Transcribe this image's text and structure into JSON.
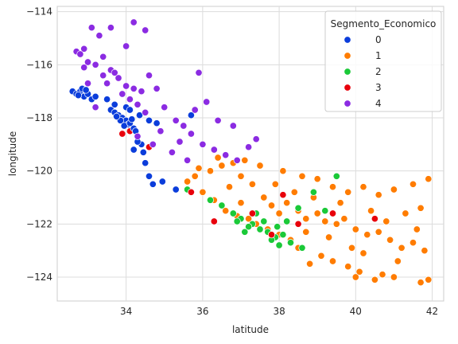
{
  "chart_data": {
    "type": "scatter",
    "xlabel": "latitude",
    "ylabel": "longitude",
    "xlim": [
      32.2,
      42.3
    ],
    "ylim": [
      -124.9,
      -113.8
    ],
    "x_ticks": [
      34,
      36,
      38,
      40,
      42
    ],
    "y_ticks": [
      -124,
      -122,
      -120,
      -118,
      -116,
      -114
    ],
    "grid": true,
    "legend": {
      "title": "Segmento_Economico",
      "position": "top-right"
    },
    "series": [
      {
        "name": "0",
        "color": "#0b3ddb",
        "points": [
          [
            32.6,
            -117.0
          ],
          [
            32.7,
            -117.1
          ],
          [
            32.8,
            -117.0
          ],
          [
            32.9,
            -117.2
          ],
          [
            33.0,
            -117.1
          ],
          [
            32.75,
            -117.15
          ],
          [
            32.85,
            -116.9
          ],
          [
            33.1,
            -117.3
          ],
          [
            33.2,
            -117.2
          ],
          [
            32.95,
            -116.95
          ],
          [
            33.6,
            -117.7
          ],
          [
            33.7,
            -117.8
          ],
          [
            33.8,
            -117.9
          ],
          [
            33.9,
            -118.0
          ],
          [
            34.0,
            -118.1
          ],
          [
            34.05,
            -118.25
          ],
          [
            33.95,
            -118.3
          ],
          [
            34.1,
            -118.2
          ],
          [
            33.85,
            -118.1
          ],
          [
            34.2,
            -118.4
          ],
          [
            34.0,
            -117.6
          ],
          [
            33.7,
            -117.5
          ],
          [
            34.15,
            -118.05
          ],
          [
            33.75,
            -117.95
          ],
          [
            34.25,
            -118.5
          ],
          [
            34.4,
            -119.0
          ],
          [
            34.3,
            -118.9
          ],
          [
            34.5,
            -119.7
          ],
          [
            34.6,
            -120.2
          ],
          [
            34.7,
            -120.5
          ],
          [
            34.95,
            -120.4
          ],
          [
            35.3,
            -120.7
          ],
          [
            34.2,
            -119.2
          ],
          [
            34.45,
            -119.3
          ],
          [
            35.7,
            -117.9
          ],
          [
            34.8,
            -118.2
          ],
          [
            34.35,
            -117.9
          ],
          [
            33.5,
            -117.3
          ],
          [
            34.1,
            -117.7
          ],
          [
            34.6,
            -118.1
          ]
        ]
      },
      {
        "name": "1",
        "color": "#ff7c00",
        "points": [
          [
            36.2,
            -120.0
          ],
          [
            36.5,
            -119.8
          ],
          [
            36.8,
            -119.7
          ],
          [
            37.0,
            -120.2
          ],
          [
            37.3,
            -120.5
          ],
          [
            37.6,
            -121.0
          ],
          [
            37.8,
            -121.3
          ],
          [
            38.0,
            -121.6
          ],
          [
            38.2,
            -121.2
          ],
          [
            38.5,
            -121.5
          ],
          [
            38.7,
            -121.8
          ],
          [
            39.0,
            -121.6
          ],
          [
            39.2,
            -121.9
          ],
          [
            39.5,
            -122.0
          ],
          [
            39.7,
            -121.8
          ],
          [
            40.0,
            -122.2
          ],
          [
            40.3,
            -122.4
          ],
          [
            40.6,
            -122.3
          ],
          [
            40.9,
            -122.6
          ],
          [
            41.2,
            -122.9
          ],
          [
            41.5,
            -122.7
          ],
          [
            41.8,
            -123.0
          ],
          [
            41.9,
            -124.1
          ],
          [
            41.7,
            -124.2
          ],
          [
            41.0,
            -124.0
          ],
          [
            40.7,
            -123.9
          ],
          [
            40.5,
            -124.1
          ],
          [
            40.1,
            -123.8
          ],
          [
            39.8,
            -123.6
          ],
          [
            39.4,
            -123.4
          ],
          [
            39.1,
            -123.2
          ],
          [
            38.8,
            -123.5
          ],
          [
            38.5,
            -122.9
          ],
          [
            38.3,
            -122.6
          ],
          [
            38.0,
            -122.4
          ],
          [
            37.7,
            -122.2
          ],
          [
            37.4,
            -122.0
          ],
          [
            37.2,
            -121.8
          ],
          [
            36.9,
            -121.7
          ],
          [
            36.6,
            -121.5
          ],
          [
            36.3,
            -121.1
          ],
          [
            36.0,
            -120.8
          ],
          [
            35.6,
            -120.4
          ],
          [
            35.9,
            -119.9
          ],
          [
            36.4,
            -119.5
          ],
          [
            37.1,
            -119.6
          ],
          [
            37.5,
            -119.8
          ],
          [
            38.1,
            -120.0
          ],
          [
            38.6,
            -120.2
          ],
          [
            39.0,
            -120.3
          ],
          [
            39.4,
            -120.6
          ],
          [
            39.8,
            -120.8
          ],
          [
            40.2,
            -120.6
          ],
          [
            40.6,
            -120.9
          ],
          [
            41.0,
            -120.7
          ],
          [
            41.5,
            -120.5
          ],
          [
            41.9,
            -120.3
          ],
          [
            40.4,
            -121.5
          ],
          [
            39.6,
            -121.2
          ],
          [
            38.9,
            -121.0
          ],
          [
            41.3,
            -121.6
          ],
          [
            41.7,
            -121.4
          ],
          [
            40.8,
            -121.9
          ],
          [
            38.4,
            -120.8
          ],
          [
            37.9,
            -120.5
          ],
          [
            40.2,
            -123.1
          ],
          [
            39.3,
            -122.5
          ],
          [
            41.6,
            -122.2
          ],
          [
            40.0,
            -124.0
          ],
          [
            37.0,
            -121.2
          ],
          [
            36.7,
            -120.6
          ],
          [
            38.7,
            -122.3
          ],
          [
            39.9,
            -122.9
          ],
          [
            41.1,
            -123.4
          ],
          [
            35.8,
            -120.2
          ]
        ]
      },
      {
        "name": "2",
        "color": "#1ac938",
        "points": [
          [
            35.6,
            -120.7
          ],
          [
            36.2,
            -121.1
          ],
          [
            36.5,
            -121.3
          ],
          [
            36.8,
            -121.6
          ],
          [
            37.0,
            -121.8
          ],
          [
            37.3,
            -122.0
          ],
          [
            37.5,
            -122.2
          ],
          [
            37.7,
            -122.3
          ],
          [
            37.9,
            -122.5
          ],
          [
            38.1,
            -122.4
          ],
          [
            37.8,
            -122.6
          ],
          [
            38.3,
            -122.7
          ],
          [
            37.6,
            -121.9
          ],
          [
            37.2,
            -122.1
          ],
          [
            38.0,
            -122.8
          ],
          [
            37.4,
            -121.6
          ],
          [
            38.6,
            -122.9
          ],
          [
            38.9,
            -120.8
          ],
          [
            39.5,
            -120.2
          ],
          [
            39.2,
            -121.5
          ],
          [
            36.9,
            -121.9
          ],
          [
            37.1,
            -122.3
          ],
          [
            38.5,
            -121.4
          ],
          [
            37.95,
            -122.1
          ],
          [
            38.2,
            -121.9
          ]
        ]
      },
      {
        "name": "3",
        "color": "#e8000b",
        "points": [
          [
            33.9,
            -118.6
          ],
          [
            33.8,
            -118.0
          ],
          [
            34.1,
            -118.5
          ],
          [
            34.6,
            -119.1
          ],
          [
            37.3,
            -121.6
          ],
          [
            36.3,
            -121.9
          ],
          [
            37.8,
            -122.4
          ],
          [
            38.1,
            -120.9
          ],
          [
            38.5,
            -122.0
          ],
          [
            39.4,
            -121.6
          ],
          [
            40.5,
            -121.8
          ],
          [
            35.7,
            -120.8
          ]
        ]
      },
      {
        "name": "4",
        "color": "#8b2be2",
        "points": [
          [
            32.7,
            -115.5
          ],
          [
            32.8,
            -115.6
          ],
          [
            32.9,
            -115.4
          ],
          [
            33.0,
            -115.9
          ],
          [
            33.2,
            -116.0
          ],
          [
            33.4,
            -115.7
          ],
          [
            33.6,
            -116.2
          ],
          [
            33.8,
            -116.5
          ],
          [
            34.0,
            -116.8
          ],
          [
            34.2,
            -116.9
          ],
          [
            33.7,
            -116.3
          ],
          [
            33.5,
            -116.7
          ],
          [
            34.1,
            -117.3
          ],
          [
            34.3,
            -117.5
          ],
          [
            34.5,
            -117.8
          ],
          [
            34.6,
            -116.4
          ],
          [
            34.8,
            -116.9
          ],
          [
            35.0,
            -117.6
          ],
          [
            35.3,
            -118.1
          ],
          [
            35.5,
            -118.3
          ],
          [
            35.7,
            -118.6
          ],
          [
            36.0,
            -119.0
          ],
          [
            36.3,
            -119.2
          ],
          [
            36.6,
            -119.4
          ],
          [
            36.9,
            -119.6
          ],
          [
            37.2,
            -119.1
          ],
          [
            37.4,
            -118.8
          ],
          [
            35.8,
            -117.7
          ],
          [
            35.9,
            -116.3
          ],
          [
            36.1,
            -117.4
          ],
          [
            33.1,
            -114.6
          ],
          [
            33.3,
            -114.9
          ],
          [
            33.6,
            -114.6
          ],
          [
            34.2,
            -114.4
          ],
          [
            34.5,
            -114.7
          ],
          [
            32.9,
            -116.1
          ],
          [
            33.4,
            -116.4
          ],
          [
            34.9,
            -118.5
          ],
          [
            35.2,
            -119.3
          ],
          [
            34.7,
            -119.0
          ],
          [
            33.9,
            -117.1
          ],
          [
            34.4,
            -117.0
          ],
          [
            35.6,
            -119.6
          ],
          [
            36.4,
            -118.1
          ],
          [
            34.0,
            -115.3
          ],
          [
            33.2,
            -117.6
          ],
          [
            33.0,
            -116.7
          ],
          [
            35.4,
            -118.9
          ],
          [
            36.8,
            -118.3
          ],
          [
            34.3,
            -118.7
          ]
        ]
      }
    ]
  }
}
